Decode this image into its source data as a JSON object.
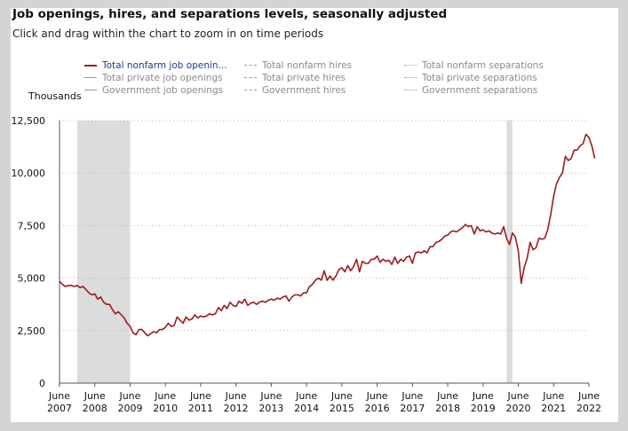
{
  "title": "Job openings, hires, and separations levels, seasonally adjusted",
  "subtitle": "Click and drag within the chart to zoom in on time periods",
  "units_label": "Thousands",
  "legend": [
    {
      "label": "Total nonfarm job openin...",
      "style": "solid",
      "color": "#9b1c1c",
      "active": true
    },
    {
      "label": "Total private job openings",
      "style": "solid",
      "color": "#9a9a9a",
      "active": false
    },
    {
      "label": "Government job openings",
      "style": "solid",
      "color": "#9a9a9a",
      "active": false
    },
    {
      "label": "Total nonfarm hires",
      "style": "dashed",
      "color": "#9a9a9a",
      "active": false
    },
    {
      "label": "Total private hires",
      "style": "dashed",
      "color": "#9a9a9a",
      "active": false
    },
    {
      "label": "Government hires",
      "style": "dashed",
      "color": "#9a9a9a",
      "active": false
    },
    {
      "label": "Total nonfarm separations",
      "style": "dotted",
      "color": "#9a9a9a",
      "active": false
    },
    {
      "label": "Total private separations",
      "style": "dotted",
      "color": "#9a9a9a",
      "active": false
    },
    {
      "label": "Government separations",
      "style": "dotted",
      "color": "#9a9a9a",
      "active": false
    }
  ],
  "chart_data": {
    "type": "line",
    "title": "Job openings, hires, and separations levels, seasonally adjusted",
    "ylabel": "Thousands",
    "ylim": [
      0,
      12500
    ],
    "yticks": [
      0,
      2500,
      5000,
      7500,
      10000,
      12500
    ],
    "ytick_labels": [
      "0",
      "2,500",
      "5,000",
      "7,500",
      "10,000",
      "12,500"
    ],
    "xlim": [
      2007.417,
      2022.417
    ],
    "xticks": [
      {
        "value": 2007.417,
        "line1": "June",
        "line2": "2007"
      },
      {
        "value": 2008.417,
        "line1": "June",
        "line2": "2008"
      },
      {
        "value": 2009.417,
        "line1": "June",
        "line2": "2009"
      },
      {
        "value": 2010.417,
        "line1": "June",
        "line2": "2010"
      },
      {
        "value": 2011.417,
        "line1": "June",
        "line2": "2011"
      },
      {
        "value": 2012.417,
        "line1": "June",
        "line2": "2012"
      },
      {
        "value": 2013.417,
        "line1": "June",
        "line2": "2013"
      },
      {
        "value": 2014.417,
        "line1": "June",
        "line2": "2014"
      },
      {
        "value": 2015.417,
        "line1": "June",
        "line2": "2015"
      },
      {
        "value": 2016.417,
        "line1": "June",
        "line2": "2016"
      },
      {
        "value": 2017.417,
        "line1": "June",
        "line2": "2017"
      },
      {
        "value": 2018.417,
        "line1": "June",
        "line2": "2018"
      },
      {
        "value": 2019.417,
        "line1": "June",
        "line2": "2019"
      },
      {
        "value": 2020.417,
        "line1": "June",
        "line2": "2020"
      },
      {
        "value": 2021.417,
        "line1": "June",
        "line2": "2021"
      },
      {
        "value": 2022.417,
        "line1": "June",
        "line2": "2022"
      }
    ],
    "recessions": [
      {
        "start": 2007.917,
        "end": 2009.417
      },
      {
        "start": 2020.083,
        "end": 2020.25
      }
    ],
    "grid": true,
    "series": [
      {
        "name": "Total nonfarm job openings",
        "color": "#9b1c1c",
        "points": [
          [
            2007.417,
            4850
          ],
          [
            2007.5,
            4700
          ],
          [
            2007.583,
            4600
          ],
          [
            2007.667,
            4650
          ],
          [
            2007.75,
            4650
          ],
          [
            2007.833,
            4600
          ],
          [
            2007.917,
            4650
          ],
          [
            2008.0,
            4550
          ],
          [
            2008.083,
            4600
          ],
          [
            2008.167,
            4450
          ],
          [
            2008.25,
            4300
          ],
          [
            2008.333,
            4200
          ],
          [
            2008.417,
            4250
          ],
          [
            2008.5,
            4000
          ],
          [
            2008.583,
            4100
          ],
          [
            2008.667,
            3850
          ],
          [
            2008.75,
            3750
          ],
          [
            2008.833,
            3750
          ],
          [
            2008.917,
            3500
          ],
          [
            2009.0,
            3300
          ],
          [
            2009.083,
            3400
          ],
          [
            2009.167,
            3250
          ],
          [
            2009.25,
            3100
          ],
          [
            2009.333,
            2850
          ],
          [
            2009.417,
            2700
          ],
          [
            2009.5,
            2400
          ],
          [
            2009.583,
            2300
          ],
          [
            2009.667,
            2550
          ],
          [
            2009.75,
            2550
          ],
          [
            2009.833,
            2400
          ],
          [
            2009.917,
            2250
          ],
          [
            2010.0,
            2350
          ],
          [
            2010.083,
            2450
          ],
          [
            2010.167,
            2400
          ],
          [
            2010.25,
            2550
          ],
          [
            2010.333,
            2550
          ],
          [
            2010.417,
            2650
          ],
          [
            2010.5,
            2850
          ],
          [
            2010.583,
            2700
          ],
          [
            2010.667,
            2750
          ],
          [
            2010.75,
            3150
          ],
          [
            2010.833,
            3000
          ],
          [
            2010.917,
            2850
          ],
          [
            2011.0,
            3150
          ],
          [
            2011.083,
            3000
          ],
          [
            2011.167,
            3050
          ],
          [
            2011.25,
            3250
          ],
          [
            2011.333,
            3100
          ],
          [
            2011.417,
            3200
          ],
          [
            2011.5,
            3150
          ],
          [
            2011.583,
            3200
          ],
          [
            2011.667,
            3300
          ],
          [
            2011.75,
            3250
          ],
          [
            2011.833,
            3300
          ],
          [
            2011.917,
            3600
          ],
          [
            2012.0,
            3450
          ],
          [
            2012.083,
            3700
          ],
          [
            2012.167,
            3550
          ],
          [
            2012.25,
            3850
          ],
          [
            2012.333,
            3700
          ],
          [
            2012.417,
            3650
          ],
          [
            2012.5,
            3900
          ],
          [
            2012.583,
            3800
          ],
          [
            2012.667,
            4000
          ],
          [
            2012.75,
            3700
          ],
          [
            2012.833,
            3800
          ],
          [
            2012.917,
            3850
          ],
          [
            2013.0,
            3750
          ],
          [
            2013.083,
            3850
          ],
          [
            2013.167,
            3900
          ],
          [
            2013.25,
            3850
          ],
          [
            2013.333,
            3950
          ],
          [
            2013.417,
            4000
          ],
          [
            2013.5,
            3950
          ],
          [
            2013.583,
            4050
          ],
          [
            2013.667,
            4000
          ],
          [
            2013.75,
            4100
          ],
          [
            2013.833,
            4150
          ],
          [
            2013.917,
            3900
          ],
          [
            2014.0,
            4100
          ],
          [
            2014.083,
            4200
          ],
          [
            2014.167,
            4200
          ],
          [
            2014.25,
            4150
          ],
          [
            2014.333,
            4300
          ],
          [
            2014.417,
            4300
          ],
          [
            2014.5,
            4600
          ],
          [
            2014.583,
            4700
          ],
          [
            2014.667,
            4900
          ],
          [
            2014.75,
            5000
          ],
          [
            2014.833,
            4900
          ],
          [
            2014.917,
            5350
          ],
          [
            2015.0,
            4900
          ],
          [
            2015.083,
            5100
          ],
          [
            2015.167,
            4900
          ],
          [
            2015.25,
            5100
          ],
          [
            2015.333,
            5400
          ],
          [
            2015.417,
            5500
          ],
          [
            2015.5,
            5300
          ],
          [
            2015.583,
            5600
          ],
          [
            2015.667,
            5350
          ],
          [
            2015.75,
            5550
          ],
          [
            2015.833,
            5900
          ],
          [
            2015.917,
            5300
          ],
          [
            2016.0,
            5800
          ],
          [
            2016.083,
            5700
          ],
          [
            2016.167,
            5700
          ],
          [
            2016.25,
            5900
          ],
          [
            2016.333,
            5900
          ],
          [
            2016.417,
            6050
          ],
          [
            2016.5,
            5750
          ],
          [
            2016.583,
            5900
          ],
          [
            2016.667,
            5800
          ],
          [
            2016.75,
            5850
          ],
          [
            2016.833,
            5650
          ],
          [
            2016.917,
            6000
          ],
          [
            2017.0,
            5700
          ],
          [
            2017.083,
            5900
          ],
          [
            2017.167,
            5800
          ],
          [
            2017.25,
            6000
          ],
          [
            2017.333,
            6050
          ],
          [
            2017.417,
            5700
          ],
          [
            2017.5,
            6200
          ],
          [
            2017.583,
            6250
          ],
          [
            2017.667,
            6200
          ],
          [
            2017.75,
            6300
          ],
          [
            2017.833,
            6200
          ],
          [
            2017.917,
            6500
          ],
          [
            2018.0,
            6500
          ],
          [
            2018.083,
            6700
          ],
          [
            2018.167,
            6750
          ],
          [
            2018.25,
            6850
          ],
          [
            2018.333,
            7000
          ],
          [
            2018.417,
            7050
          ],
          [
            2018.5,
            7200
          ],
          [
            2018.583,
            7250
          ],
          [
            2018.667,
            7200
          ],
          [
            2018.75,
            7300
          ],
          [
            2018.833,
            7400
          ],
          [
            2018.917,
            7550
          ],
          [
            2019.0,
            7450
          ],
          [
            2019.083,
            7500
          ],
          [
            2019.167,
            7100
          ],
          [
            2019.25,
            7450
          ],
          [
            2019.333,
            7250
          ],
          [
            2019.417,
            7300
          ],
          [
            2019.5,
            7200
          ],
          [
            2019.583,
            7250
          ],
          [
            2019.667,
            7150
          ],
          [
            2019.75,
            7100
          ],
          [
            2019.833,
            7150
          ],
          [
            2019.917,
            7100
          ],
          [
            2020.0,
            7450
          ],
          [
            2020.083,
            6900
          ],
          [
            2020.167,
            6600
          ],
          [
            2020.25,
            7150
          ],
          [
            2020.333,
            6950
          ],
          [
            2020.417,
            6300
          ],
          [
            2020.5,
            4750
          ],
          [
            2020.583,
            5500
          ],
          [
            2020.667,
            5950
          ],
          [
            2020.75,
            6700
          ],
          [
            2020.833,
            6350
          ],
          [
            2020.917,
            6450
          ],
          [
            2021.0,
            6900
          ],
          [
            2021.083,
            6850
          ],
          [
            2021.167,
            6900
          ],
          [
            2021.25,
            7300
          ],
          [
            2021.333,
            8000
          ],
          [
            2021.417,
            8900
          ],
          [
            2021.5,
            9500
          ],
          [
            2021.583,
            9800
          ],
          [
            2021.667,
            10000
          ],
          [
            2021.75,
            10800
          ],
          [
            2021.833,
            10600
          ],
          [
            2021.917,
            10700
          ],
          [
            2022.0,
            11100
          ],
          [
            2022.083,
            11100
          ],
          [
            2022.167,
            11300
          ],
          [
            2022.25,
            11400
          ],
          [
            2022.333,
            11850
          ],
          [
            2022.417,
            11700
          ],
          [
            2022.5,
            11300
          ],
          [
            2022.583,
            10700
          ]
        ]
      }
    ]
  }
}
